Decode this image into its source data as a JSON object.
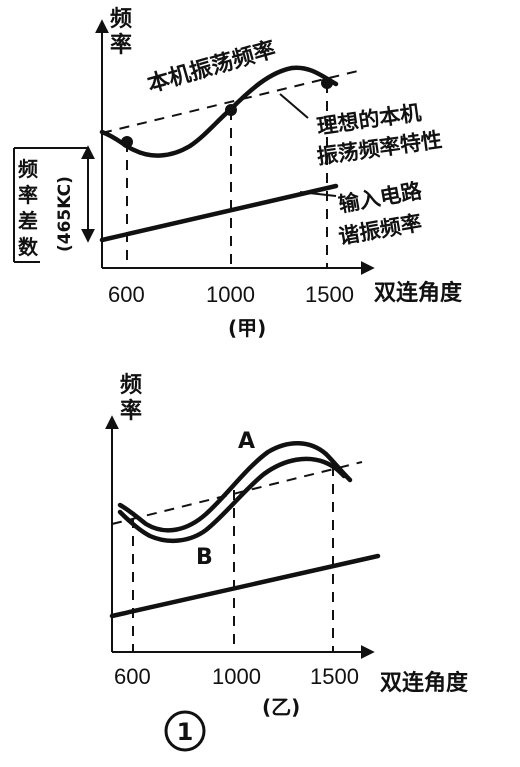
{
  "panel_a": {
    "y_axis_label": "频率",
    "x_axis_label": "双连角度",
    "caption": "(甲)",
    "ticks": [
      "600",
      "1000",
      "1500"
    ],
    "label_local_osc": "本机振荡频率",
    "label_ideal_line1": "理想的本机",
    "label_ideal_line2": "振荡频率特性",
    "label_input_line1": "输入电路",
    "label_input_line2": "谐振频率",
    "label_diff_char1": "频",
    "label_diff_char2": "率",
    "label_diff_char3": "差",
    "label_diff_char4": "数",
    "label_diff_value": "(465KC)"
  },
  "panel_b": {
    "y_axis_label": "频率",
    "x_axis_label": "双连角度",
    "caption": "(乙)",
    "ticks": [
      "600",
      "1000",
      "1500"
    ],
    "curve_a_label": "A",
    "curve_b_label": "B"
  },
  "figure_number": "1"
}
